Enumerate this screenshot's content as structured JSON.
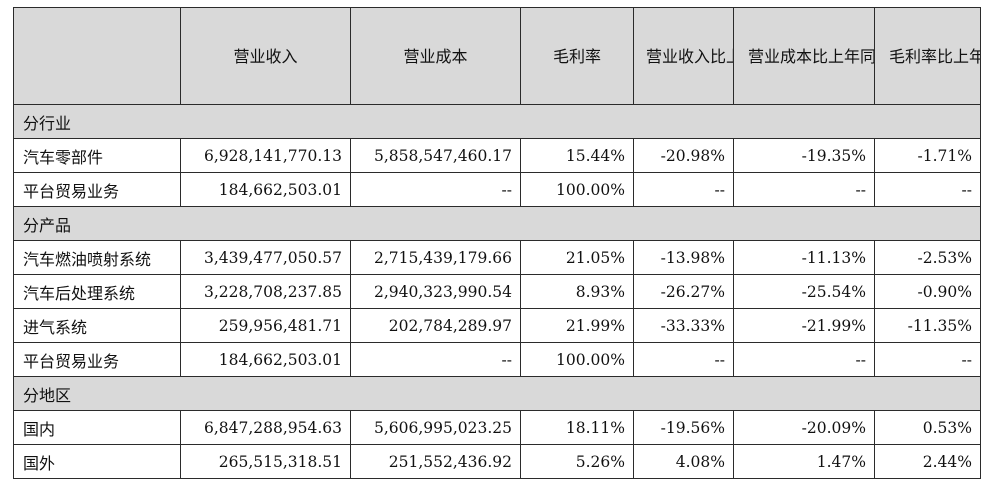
{
  "headers": [
    "",
    "营业收入",
    "营业成本",
    "毛利率",
    "营业收入比上年同期增减",
    "营业成本比上年同期增减",
    "毛利率比上年同期增减"
  ],
  "sections": [
    {
      "title": "分行业",
      "rows": [
        [
          "汽车零部件",
          "6,928,141,770.13",
          "5,858,547,460.17",
          "15.44%",
          "-20.98%",
          "-19.35%",
          "-1.71%"
        ],
        [
          "平台贸易业务",
          "184,662,503.01",
          "--",
          "100.00%",
          "--",
          "--",
          "--"
        ]
      ]
    },
    {
      "title": "分产品",
      "rows": [
        [
          "汽车燃油喷射系统",
          "3,439,477,050.57",
          "2,715,439,179.66",
          "21.05%",
          "-13.98%",
          "-11.13%",
          "-2.53%"
        ],
        [
          "汽车后处理系统",
          "3,228,708,237.85",
          "2,940,323,990.54",
          "8.93%",
          "-26.27%",
          "-25.54%",
          "-0.90%"
        ],
        [
          "进气系统",
          "259,956,481.71",
          "202,784,289.97",
          "21.99%",
          "-33.33%",
          "-21.99%",
          "-11.35%"
        ],
        [
          "平台贸易业务",
          "184,662,503.01",
          "--",
          "100.00%",
          "--",
          "--",
          "--"
        ]
      ]
    },
    {
      "title": "分地区",
      "rows": [
        [
          "国内",
          "6,847,288,954.63",
          "5,606,995,023.25",
          "18.11%",
          "-19.56%",
          "-20.09%",
          "0.53%"
        ],
        [
          "国外",
          "265,515,318.51",
          "251,552,436.92",
          "5.26%",
          "4.08%",
          "1.47%",
          "2.44%"
        ]
      ]
    }
  ]
}
